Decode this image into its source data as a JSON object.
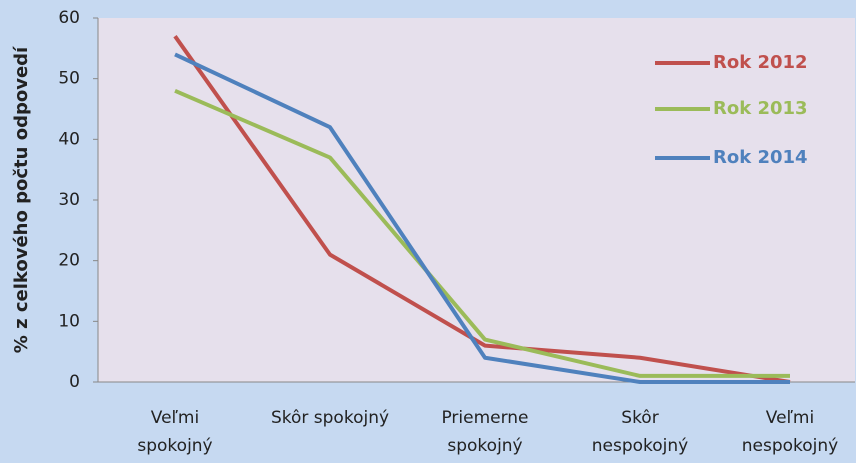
{
  "chart_data": {
    "type": "line",
    "categories": [
      "Veľmi\nspokojný",
      "Skôr spokojný",
      "Priemerne\nspokojný",
      "Skôr\nnespokojný",
      "Veľmi\nnespokojný"
    ],
    "series": [
      {
        "name": "Rok 2012",
        "color": "#c0504d",
        "values": [
          57,
          21,
          6,
          4,
          0
        ]
      },
      {
        "name": "Rok 2013",
        "color": "#9bbb59",
        "values": [
          48,
          37,
          7,
          1,
          1
        ]
      },
      {
        "name": "Rok 2014",
        "color": "#4f81bd",
        "values": [
          54,
          42,
          4,
          0,
          0
        ]
      }
    ],
    "y_label": "% z celkového počtu odpovedí",
    "ylim": [
      0,
      60
    ],
    "yticks": [
      0,
      10,
      20,
      30,
      40,
      50,
      60
    ],
    "grid": false,
    "legend": "right"
  }
}
